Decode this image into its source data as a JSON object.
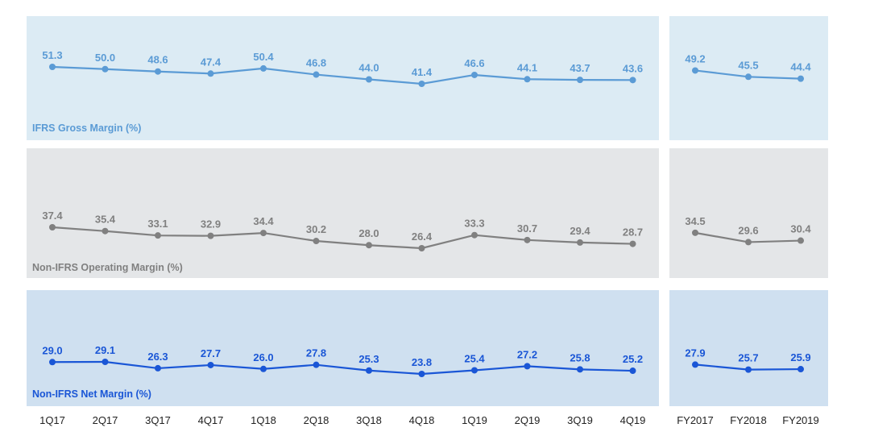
{
  "chart_data": {
    "type": "line",
    "quarters": [
      "1Q17",
      "2Q17",
      "3Q17",
      "4Q17",
      "1Q18",
      "2Q18",
      "3Q18",
      "4Q18",
      "1Q19",
      "2Q19",
      "3Q19",
      "4Q19"
    ],
    "years": [
      "FY2017",
      "FY2018",
      "FY2019"
    ],
    "series": [
      {
        "name": "IFRS Gross Margin (%)",
        "color": "#5b9bd5",
        "panel_color": "#dcebf4",
        "quarterly": [
          51.3,
          50.0,
          48.6,
          47.4,
          50.4,
          46.8,
          44.0,
          41.4,
          46.6,
          44.1,
          43.7,
          43.6
        ],
        "quarterly_labels": [
          "51.3",
          "50.0",
          "48.6",
          "47.4",
          "50.4",
          "46.8",
          "44.0",
          "41.4",
          "46.6",
          "44.1",
          "43.7",
          "43.6"
        ],
        "annual": [
          49.2,
          45.5,
          44.4
        ],
        "annual_labels": [
          "49.2",
          "45.5",
          "44.4"
        ]
      },
      {
        "name": "Non-IFRS Operating Margin (%)",
        "color": "#808080",
        "panel_color": "#e4e6e8",
        "quarterly": [
          37.4,
          35.4,
          33.1,
          32.9,
          34.4,
          30.2,
          28.0,
          26.4,
          33.3,
          30.7,
          29.4,
          28.7
        ],
        "quarterly_labels": [
          "37.4",
          "35.4",
          "33.1",
          "32.9",
          "34.4",
          "30.2",
          "28.0",
          "26.4",
          "33.3",
          "30.7",
          "29.4",
          "28.7"
        ],
        "annual": [
          34.5,
          29.6,
          30.4
        ],
        "annual_labels": [
          "34.5",
          "29.6",
          "30.4"
        ]
      },
      {
        "name": "Non-IFRS Net Margin (%)",
        "color": "#1a56d6",
        "panel_color": "#cfe0f0",
        "quarterly": [
          29.0,
          29.1,
          26.3,
          27.7,
          26.0,
          27.8,
          25.3,
          23.8,
          25.4,
          27.2,
          25.8,
          25.2
        ],
        "quarterly_labels": [
          "29.0",
          "29.1",
          "26.3",
          "27.7",
          "26.0",
          "27.8",
          "25.3",
          "23.8",
          "25.4",
          "27.2",
          "25.8",
          "25.2"
        ],
        "annual": [
          27.9,
          25.7,
          25.9
        ],
        "annual_labels": [
          "27.9",
          "25.7",
          "25.9"
        ]
      }
    ]
  }
}
